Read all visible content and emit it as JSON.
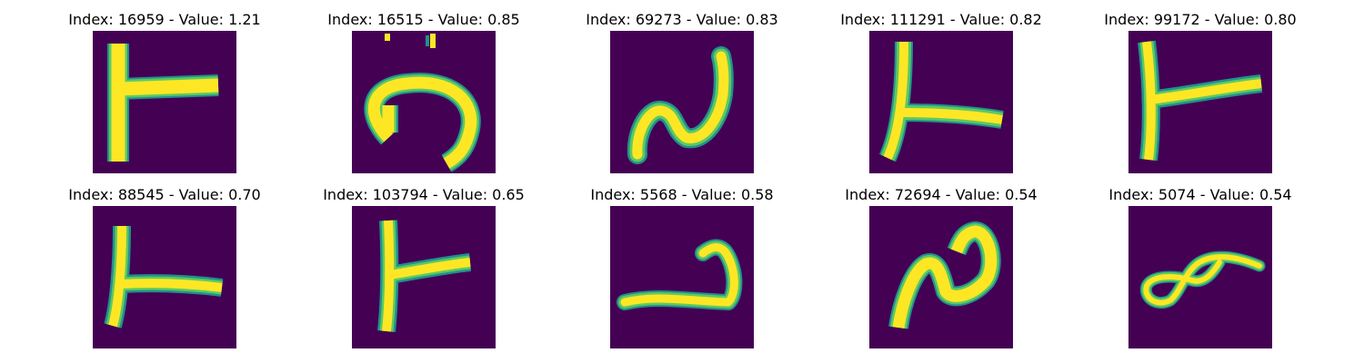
{
  "panels": [
    {
      "title": "Index: 16959 - Value: 1.21",
      "glyph": "t-shape"
    },
    {
      "title": "Index: 16515 - Value: 0.85",
      "glyph": "curl-with-dots"
    },
    {
      "title": "Index: 69273 - Value: 0.83",
      "glyph": "n-wave"
    },
    {
      "title": "Index: 111291 - Value: 0.82",
      "glyph": "t-shape"
    },
    {
      "title": "Index: 99172 - Value: 0.80",
      "glyph": "t-shape"
    },
    {
      "title": "Index: 88545 - Value: 0.70",
      "glyph": "t-shape"
    },
    {
      "title": "Index: 103794 - Value: 0.65",
      "glyph": "t-shape"
    },
    {
      "title": "Index: 5568 - Value: 0.58",
      "glyph": "hook"
    },
    {
      "title": "Index: 72694 - Value: 0.54",
      "glyph": "n-wave"
    },
    {
      "title": "Index: 5074 - Value: 0.54",
      "glyph": "loop"
    }
  ],
  "colors": {
    "background": "#440154",
    "edge": "#21918c",
    "mid": "#5ec962",
    "stroke": "#fde725"
  }
}
